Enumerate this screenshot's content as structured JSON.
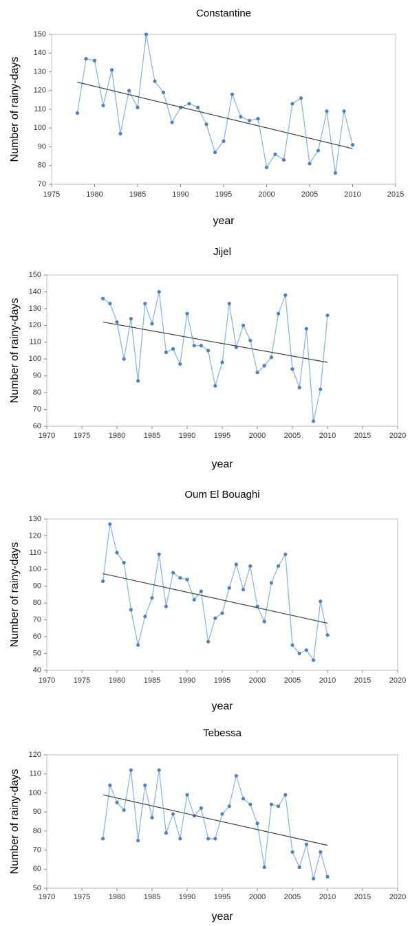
{
  "chart_data": [
    {
      "type": "line",
      "title": "Constantine",
      "xlabel": "year",
      "ylabel": "Number of rainy-days",
      "x": [
        1978,
        1979,
        1980,
        1981,
        1982,
        1983,
        1984,
        1985,
        1986,
        1987,
        1988,
        1989,
        1990,
        1991,
        1992,
        1993,
        1994,
        1995,
        1996,
        1997,
        1998,
        1999,
        2000,
        2001,
        2002,
        2003,
        2004,
        2005,
        2006,
        2007,
        2008,
        2009,
        2010
      ],
      "series": [
        {
          "color": "#8eb4e3",
          "marker_color": "#4f81bd",
          "values": [
            108,
            137,
            136,
            112,
            131,
            97,
            120,
            111,
            150,
            125,
            119,
            103,
            111,
            113,
            111,
            102,
            87,
            93,
            118,
            106,
            104,
            105,
            79,
            86,
            83,
            113,
            116,
            81,
            88,
            109,
            76,
            109,
            91
          ]
        }
      ],
      "trend": {
        "x": [
          1978,
          2010
        ],
        "values": [
          124.5,
          89
        ],
        "color": "#404040"
      },
      "xlim": [
        1975,
        2015
      ],
      "xticks": [
        1975,
        1980,
        1985,
        1990,
        1995,
        2000,
        2005,
        2010,
        2015
      ],
      "ylim": [
        70,
        150
      ],
      "yticks": [
        70,
        80,
        90,
        100,
        110,
        120,
        130,
        140,
        150
      ]
    },
    {
      "type": "line",
      "title": "Jijel",
      "xlabel": "year",
      "ylabel": "Number of rainy-days",
      "x": [
        1978,
        1979,
        1980,
        1981,
        1982,
        1983,
        1984,
        1985,
        1986,
        1987,
        1988,
        1989,
        1990,
        1991,
        1992,
        1993,
        1994,
        1995,
        1996,
        1997,
        1998,
        1999,
        2000,
        2001,
        2002,
        2003,
        2004,
        2005,
        2006,
        2007,
        2008,
        2009,
        2010
      ],
      "series": [
        {
          "color": "#8eb4e3",
          "marker_color": "#4f81bd",
          "values": [
            136,
            133,
            122,
            100,
            124,
            87,
            133,
            121,
            140,
            104,
            106,
            97,
            127,
            108,
            108,
            105,
            84,
            98,
            133,
            107,
            120,
            111,
            92,
            96,
            101,
            127,
            138,
            94,
            83,
            118,
            63,
            82,
            126
          ]
        }
      ],
      "trend": {
        "x": [
          1978,
          2010
        ],
        "values": [
          122,
          98
        ],
        "color": "#404040"
      },
      "xlim": [
        1970,
        2020
      ],
      "xticks": [
        1970,
        1975,
        1980,
        1985,
        1990,
        1995,
        2000,
        2005,
        2010,
        2015,
        2020
      ],
      "ylim": [
        60,
        150
      ],
      "yticks": [
        60,
        70,
        80,
        90,
        100,
        110,
        120,
        130,
        140,
        150
      ]
    },
    {
      "type": "line",
      "title": "Oum El Bouaghi",
      "xlabel": "year",
      "ylabel": "Number of rainy-days",
      "x": [
        1978,
        1979,
        1980,
        1981,
        1982,
        1983,
        1984,
        1985,
        1986,
        1987,
        1988,
        1989,
        1990,
        1991,
        1992,
        1993,
        1994,
        1995,
        1996,
        1997,
        1998,
        1999,
        2000,
        2001,
        2002,
        2003,
        2004,
        2005,
        2006,
        2007,
        2008,
        2009,
        2010
      ],
      "series": [
        {
          "color": "#8eb4e3",
          "marker_color": "#4f81bd",
          "values": [
            93,
            127,
            110,
            104,
            76,
            55,
            72,
            83,
            109,
            78,
            98,
            95,
            94,
            82,
            87,
            57,
            71,
            74,
            89,
            103,
            88,
            102,
            78,
            69,
            92,
            102,
            109,
            55,
            50,
            52,
            46,
            81,
            61
          ]
        }
      ],
      "trend": {
        "x": [
          1978,
          2010
        ],
        "values": [
          97.5,
          68
        ],
        "color": "#404040"
      },
      "xlim": [
        1970,
        2020
      ],
      "xticks": [
        1970,
        1975,
        1980,
        1985,
        1990,
        1995,
        2000,
        2005,
        2010,
        2015,
        2020
      ],
      "ylim": [
        40,
        130
      ],
      "yticks": [
        40,
        50,
        60,
        70,
        80,
        90,
        100,
        110,
        120,
        130
      ]
    },
    {
      "type": "line",
      "title": "Tebessa",
      "xlabel": "year",
      "ylabel": "Number of rainy-days",
      "x": [
        1978,
        1979,
        1980,
        1981,
        1982,
        1983,
        1984,
        1985,
        1986,
        1987,
        1988,
        1989,
        1990,
        1991,
        1992,
        1993,
        1994,
        1995,
        1996,
        1997,
        1998,
        1999,
        2000,
        2001,
        2002,
        2003,
        2004,
        2005,
        2006,
        2007,
        2008,
        2009,
        2010
      ],
      "series": [
        {
          "color": "#8eb4e3",
          "marker_color": "#4f81bd",
          "values": [
            76,
            104,
            95,
            91,
            112,
            75,
            104,
            87,
            112,
            79,
            89,
            76,
            99,
            88,
            92,
            76,
            76,
            89,
            93,
            109,
            97,
            94,
            84,
            61,
            94,
            93,
            99,
            69,
            61,
            73,
            55,
            69,
            56
          ]
        }
      ],
      "trend": {
        "x": [
          1978,
          2010
        ],
        "values": [
          99,
          72.5
        ],
        "color": "#404040"
      },
      "xlim": [
        1970,
        2020
      ],
      "xticks": [
        1970,
        1975,
        1980,
        1985,
        1990,
        1995,
        2000,
        2005,
        2010,
        2015,
        2020
      ],
      "ylim": [
        50,
        120
      ],
      "yticks": [
        50,
        60,
        70,
        80,
        90,
        100,
        110,
        120
      ]
    }
  ]
}
